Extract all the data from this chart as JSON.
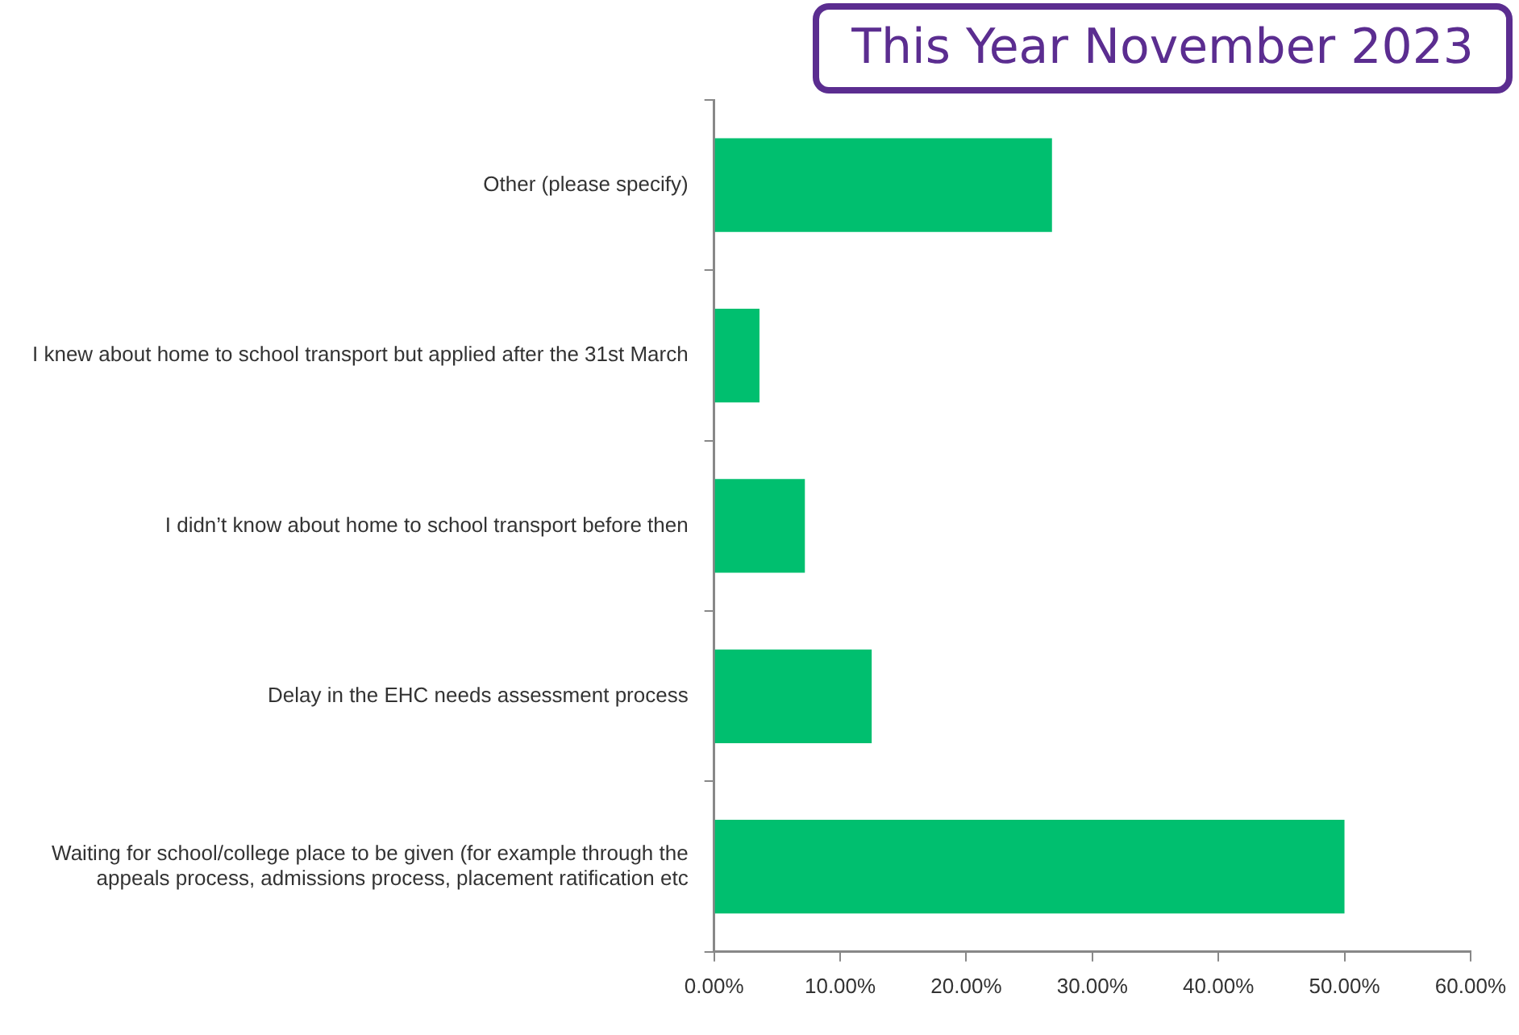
{
  "chart_data": {
    "type": "bar",
    "orientation": "horizontal",
    "title": "This Year November 2023",
    "categories": [
      "Other (please specify)",
      "I knew about home to school transport but applied after the 31st March",
      "I didn’t know about home to school transport before then",
      "Delay in the EHC needs assessment process",
      "Waiting for school/college place to be given (for example through the appeals process, admissions process, placement ratification etc"
    ],
    "values": [
      26.8,
      3.6,
      7.2,
      12.5,
      50
    ],
    "color": "#00bf6f",
    "xlim": [
      0,
      60
    ],
    "xticks": [
      {
        "value": 0,
        "label": "0.00%"
      },
      {
        "value": 10,
        "label": "10.00%"
      },
      {
        "value": 20,
        "label": "20.00%"
      },
      {
        "value": 30,
        "label": "30.00%"
      },
      {
        "value": 40,
        "label": "40.00%"
      },
      {
        "value": 50,
        "label": "50.00%"
      },
      {
        "value": 60,
        "label": "60.00%"
      }
    ],
    "grid": false
  }
}
